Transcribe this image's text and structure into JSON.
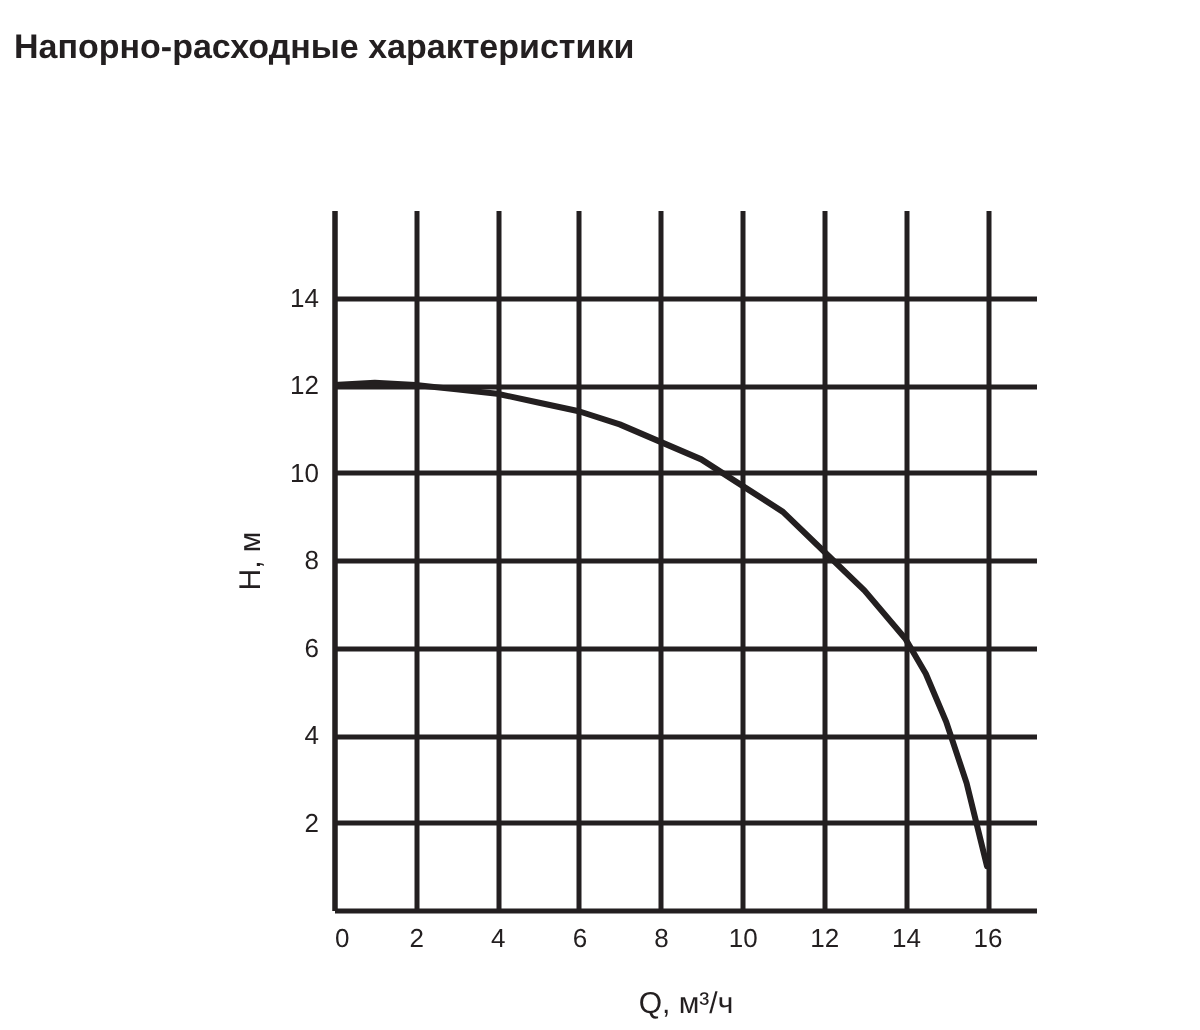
{
  "chart_data": {
    "type": "line",
    "title": "Напорно-расходные характеристики",
    "xlabel": "Q, м³/ч",
    "ylabel": "H, м",
    "x": [
      0,
      1,
      2,
      3,
      4,
      5,
      6,
      7,
      8,
      9,
      10,
      11,
      12,
      13,
      14,
      14.5,
      15,
      15.5,
      16
    ],
    "series": [
      {
        "color": "#231f20",
        "values": [
          12,
          12.05,
          12,
          11.9,
          11.8,
          11.6,
          11.4,
          11.1,
          10.7,
          10.3,
          9.7,
          9.1,
          8.2,
          7.3,
          6.2,
          5.4,
          4.3,
          2.9,
          1
        ]
      }
    ],
    "xlim": [
      0,
      17.2
    ],
    "ylim": [
      0,
      16
    ],
    "xticks": [
      0,
      2,
      4,
      6,
      8,
      10,
      12,
      14,
      16
    ],
    "yticks": [
      2,
      4,
      6,
      8,
      10,
      12,
      14
    ],
    "grid": true,
    "marker": "none",
    "line_style": "solid"
  }
}
